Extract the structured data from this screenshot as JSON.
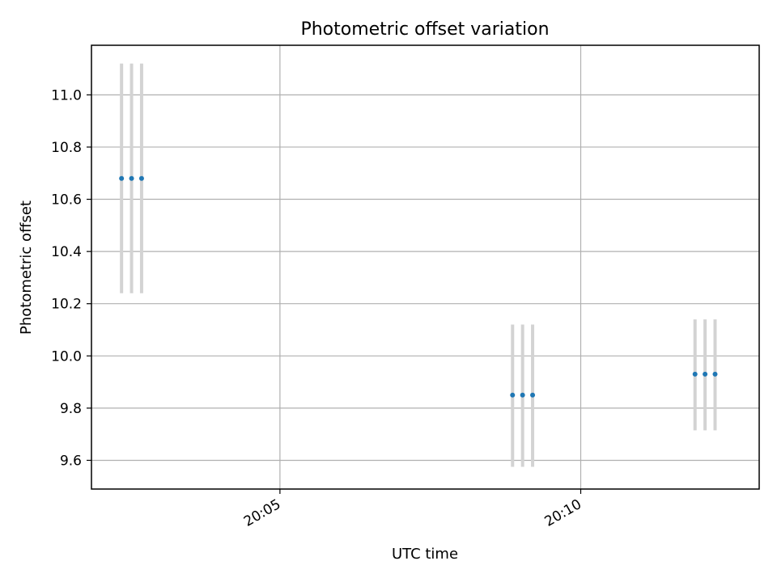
{
  "chart_data": {
    "type": "scatter",
    "title": "Photometric offset variation",
    "xlabel": "UTC time",
    "ylabel": "Photometric offset",
    "x_ticks": [
      "20:05",
      "20:10"
    ],
    "y_ticks": [
      "9.6",
      "9.8",
      "10.0",
      "10.2",
      "10.4",
      "10.6",
      "10.8",
      "11.0"
    ],
    "ylim": [
      9.49,
      11.19
    ],
    "xlim": [
      "20:01:52",
      "20:12:58"
    ],
    "grid": true,
    "errorbar_color": "#d3d3d3",
    "point_color": "#1f77b4",
    "points": [
      {
        "x": "20:02:22",
        "y": 10.68,
        "err_low": 10.24,
        "err_high": 11.12
      },
      {
        "x": "20:02:32",
        "y": 10.68,
        "err_low": 10.24,
        "err_high": 11.12
      },
      {
        "x": "20:02:42",
        "y": 10.68,
        "err_low": 10.24,
        "err_high": 11.12
      },
      {
        "x": "20:08:52",
        "y": 9.85,
        "err_low": 9.575,
        "err_high": 10.12
      },
      {
        "x": "20:09:02",
        "y": 9.85,
        "err_low": 9.575,
        "err_high": 10.12
      },
      {
        "x": "20:09:12",
        "y": 9.85,
        "err_low": 9.575,
        "err_high": 10.12
      },
      {
        "x": "20:11:54",
        "y": 9.93,
        "err_low": 9.715,
        "err_high": 10.14
      },
      {
        "x": "20:12:04",
        "y": 9.93,
        "err_low": 9.715,
        "err_high": 10.14
      },
      {
        "x": "20:12:14",
        "y": 9.93,
        "err_low": 9.715,
        "err_high": 10.14
      }
    ]
  }
}
